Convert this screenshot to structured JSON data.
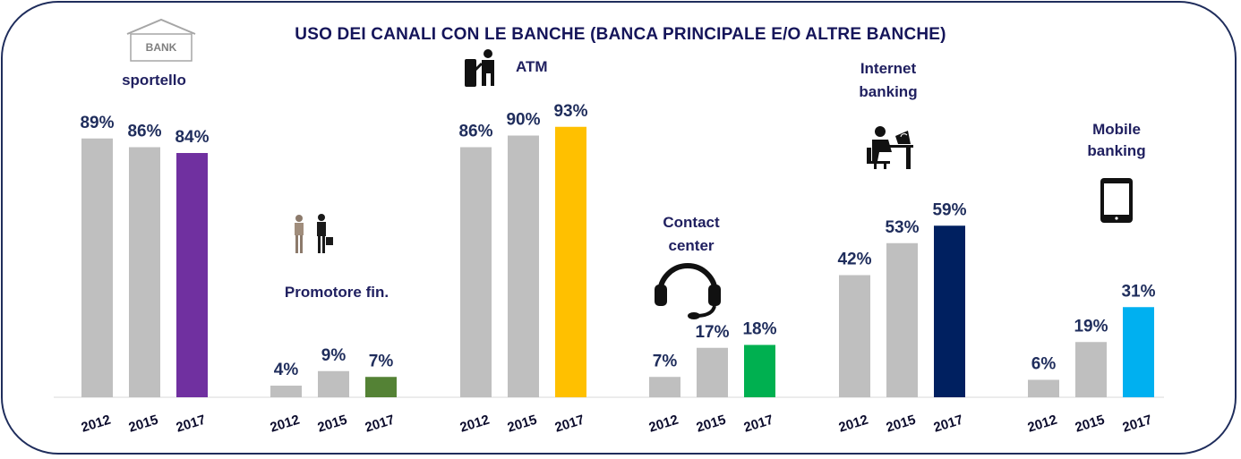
{
  "chart_data": {
    "type": "bar",
    "title": "USO DEI CANALI  CON LE BANCHE (BANCA PRINCIPALE E/O ALTRE BANCHE)",
    "ylim": [
      0,
      100
    ],
    "grid": false,
    "groups": [
      {
        "category": "sportello",
        "label_lines": [
          "sportello"
        ],
        "label_color": "#1f2d8a",
        "icon": "bank-icon",
        "bars": [
          {
            "year": "2012",
            "value": 89,
            "label": "89%",
            "color": "#bfbfbf"
          },
          {
            "year": "2015",
            "value": 86,
            "label": "86%",
            "color": "#bfbfbf"
          },
          {
            "year": "2017",
            "value": 84,
            "label": "84%",
            "color": "#7030a0"
          }
        ]
      },
      {
        "category": "Promotore fin.",
        "label_lines": [
          "Promotore fin."
        ],
        "label_color": "#1f2d8a",
        "icon": "advisor-icon",
        "bars": [
          {
            "year": "2012",
            "value": 4,
            "label": "4%",
            "color": "#bfbfbf"
          },
          {
            "year": "2015",
            "value": 9,
            "label": "9%",
            "color": "#bfbfbf"
          },
          {
            "year": "2017",
            "value": 7,
            "label": "7%",
            "color": "#548235"
          }
        ]
      },
      {
        "category": "ATM",
        "label_lines": [
          "ATM"
        ],
        "label_color": "#1f2d8a",
        "icon": "atm-icon",
        "bars": [
          {
            "year": "2012",
            "value": 86,
            "label": "86%",
            "color": "#bfbfbf"
          },
          {
            "year": "2015",
            "value": 90,
            "label": "90%",
            "color": "#bfbfbf"
          },
          {
            "year": "2017",
            "value": 93,
            "label": "93%",
            "color": "#ffc000"
          }
        ]
      },
      {
        "category": "Contact center",
        "label_lines": [
          "Contact",
          "center"
        ],
        "label_color": "#1f2d5c",
        "icon": "headset-icon",
        "bars": [
          {
            "year": "2012",
            "value": 7,
            "label": "7%",
            "color": "#bfbfbf"
          },
          {
            "year": "2015",
            "value": 17,
            "label": "17%",
            "color": "#bfbfbf"
          },
          {
            "year": "2017",
            "value": 18,
            "label": "18%",
            "color": "#00b050"
          }
        ]
      },
      {
        "category": "Internet banking",
        "label_lines": [
          "Internet",
          "banking"
        ],
        "label_color": "#1f2d5c",
        "icon": "computer-user-icon",
        "bars": [
          {
            "year": "2012",
            "value": 42,
            "label": "42%",
            "color": "#bfbfbf"
          },
          {
            "year": "2015",
            "value": 53,
            "label": "53%",
            "color": "#bfbfbf"
          },
          {
            "year": "2017",
            "value": 59,
            "label": "59%",
            "color": "#002060"
          }
        ]
      },
      {
        "category": "Mobile banking",
        "label_lines": [
          "Mobile",
          "banking"
        ],
        "label_color": "#2e75b6",
        "icon": "tablet-icon",
        "bars": [
          {
            "year": "2012",
            "value": 6,
            "label": "6%",
            "color": "#bfbfbf"
          },
          {
            "year": "2015",
            "value": 19,
            "label": "19%",
            "color": "#bfbfbf"
          },
          {
            "year": "2017",
            "value": 31,
            "label": "31%",
            "color": "#00b0f0"
          }
        ]
      }
    ],
    "icon_text": {
      "bank": "BANK"
    }
  }
}
